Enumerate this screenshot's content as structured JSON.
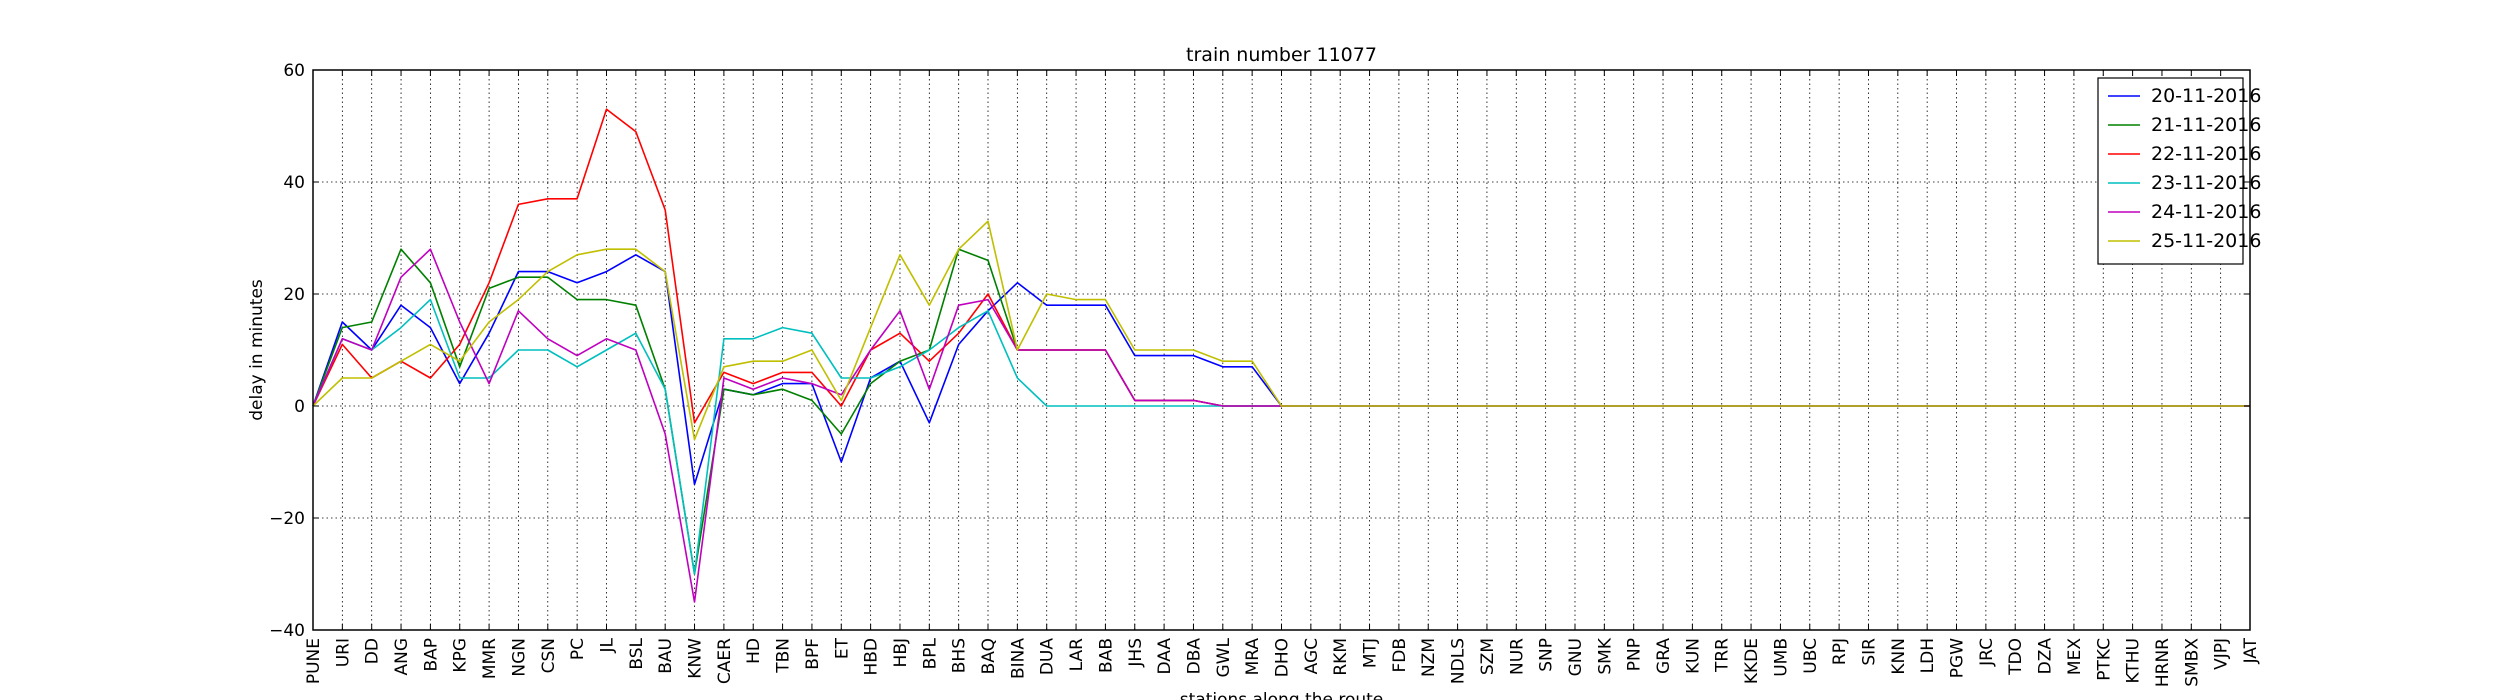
{
  "chart_data": {
    "type": "line",
    "title": "train number 11077",
    "xlabel": "stations along the route",
    "ylabel": "delay in minutes",
    "ylim": [
      -40,
      60
    ],
    "yticks": [
      -40,
      -20,
      0,
      20,
      40,
      60
    ],
    "ytick_labels": [
      "−40",
      "−20",
      "0",
      "20",
      "40",
      "60"
    ],
    "grid": true,
    "legend_position": "top-right",
    "categories": [
      "PUNE",
      "URI",
      "DD",
      "ANG",
      "BAP",
      "KPG",
      "MMR",
      "NGN",
      "CSN",
      "PC",
      "JL",
      "BSL",
      "BAU",
      "KNW",
      "CAER",
      "HD",
      "TBN",
      "BPF",
      "ET",
      "HBD",
      "HBJ",
      "BPL",
      "BHS",
      "BAQ",
      "BINA",
      "DUA",
      "LAR",
      "BAB",
      "JHS",
      "DAA",
      "DBA",
      "GWL",
      "MRA",
      "DHO",
      "AGC",
      "RKM",
      "MTJ",
      "FDB",
      "NZM",
      "NDLS",
      "SZM",
      "NUR",
      "SNP",
      "GNU",
      "SMK",
      "PNP",
      "GRA",
      "KUN",
      "TRR",
      "KKDE",
      "UMB",
      "UBC",
      "RPJ",
      "SIR",
      "KNN",
      "LDH",
      "PGW",
      "JRC",
      "TDO",
      "DZA",
      "MEX",
      "PTKC",
      "KTHU",
      "HRNR",
      "SMBX",
      "VJPJ",
      "JAT"
    ],
    "series": [
      {
        "name": "20-11-2016",
        "color": "#0000ff",
        "values": [
          0,
          15,
          10,
          18,
          14,
          4,
          13,
          24,
          24,
          22,
          24,
          27,
          24,
          -14,
          3,
          2,
          4,
          4,
          -10,
          5,
          8,
          -3,
          11,
          17,
          22,
          18,
          18,
          18,
          9,
          9,
          9,
          7,
          7,
          0,
          0,
          0,
          0,
          0,
          0,
          0,
          0,
          0,
          0,
          0,
          0,
          0,
          0,
          0,
          0,
          0,
          0,
          0,
          0,
          0,
          0,
          0,
          0,
          0,
          0,
          0,
          0,
          0,
          0,
          0,
          0,
          0,
          0
        ]
      },
      {
        "name": "21-11-2016",
        "color": "#008000",
        "values": [
          0,
          14,
          15,
          28,
          22,
          7,
          21,
          23,
          23,
          19,
          19,
          18,
          3,
          -30,
          3,
          2,
          3,
          1,
          -5,
          4,
          8,
          10,
          28,
          26,
          10,
          10,
          10,
          10,
          1,
          1,
          1,
          0,
          0,
          0,
          0,
          0,
          0,
          0,
          0,
          0,
          0,
          0,
          0,
          0,
          0,
          0,
          0,
          0,
          0,
          0,
          0,
          0,
          0,
          0,
          0,
          0,
          0,
          0,
          0,
          0,
          0,
          0,
          0,
          0,
          0,
          0,
          0
        ]
      },
      {
        "name": "22-11-2016",
        "color": "#ff0000",
        "values": [
          0,
          11,
          5,
          8,
          5,
          11,
          22,
          36,
          37,
          37,
          53,
          49,
          35,
          -3,
          6,
          4,
          6,
          6,
          0,
          10,
          13,
          8,
          13,
          20,
          10,
          10,
          10,
          10,
          1,
          1,
          1,
          0,
          0,
          0,
          0,
          0,
          0,
          0,
          0,
          0,
          0,
          0,
          0,
          0,
          0,
          0,
          0,
          0,
          0,
          0,
          0,
          0,
          0,
          0,
          0,
          0,
          0,
          0,
          0,
          0,
          0,
          0,
          0,
          0,
          0,
          0,
          0
        ]
      },
      {
        "name": "23-11-2016",
        "color": "#00bfbf",
        "values": [
          0,
          12,
          10,
          14,
          19,
          5,
          5,
          10,
          10,
          7,
          10,
          13,
          3,
          -30,
          12,
          12,
          14,
          13,
          5,
          5,
          7,
          10,
          14,
          17,
          5,
          0,
          0,
          0,
          0,
          0,
          0,
          0,
          0,
          0,
          0,
          0,
          0,
          0,
          0,
          0,
          0,
          0,
          0,
          0,
          0,
          0,
          0,
          0,
          0,
          0,
          0,
          0,
          0,
          0,
          0,
          0,
          0,
          0,
          0,
          0,
          0,
          0,
          0,
          0,
          0,
          0,
          0
        ]
      },
      {
        "name": "24-11-2016",
        "color": "#bf00bf",
        "values": [
          0,
          12,
          10,
          23,
          28,
          15,
          4,
          17,
          12,
          9,
          12,
          10,
          -5,
          -35,
          5,
          3,
          5,
          4,
          2,
          10,
          17,
          3,
          18,
          19,
          10,
          10,
          10,
          10,
          1,
          1,
          1,
          0,
          0,
          0,
          0,
          0,
          0,
          0,
          0,
          0,
          0,
          0,
          0,
          0,
          0,
          0,
          0,
          0,
          0,
          0,
          0,
          0,
          0,
          0,
          0,
          0,
          0,
          0,
          0,
          0,
          0,
          0,
          0,
          0,
          0,
          0,
          0
        ]
      },
      {
        "name": "25-11-2016",
        "color": "#bfbf00",
        "values": [
          0,
          5,
          5,
          8,
          11,
          8,
          15,
          19,
          24,
          27,
          28,
          28,
          24,
          -6,
          7,
          8,
          8,
          10,
          1,
          14,
          27,
          18,
          28,
          33,
          10,
          20,
          19,
          19,
          10,
          10,
          10,
          8,
          8,
          0,
          0,
          0,
          0,
          0,
          0,
          0,
          0,
          0,
          0,
          0,
          0,
          0,
          0,
          0,
          0,
          0,
          0,
          0,
          0,
          0,
          0,
          0,
          0,
          0,
          0,
          0,
          0,
          0,
          0,
          0,
          0,
          0,
          0
        ]
      }
    ]
  }
}
